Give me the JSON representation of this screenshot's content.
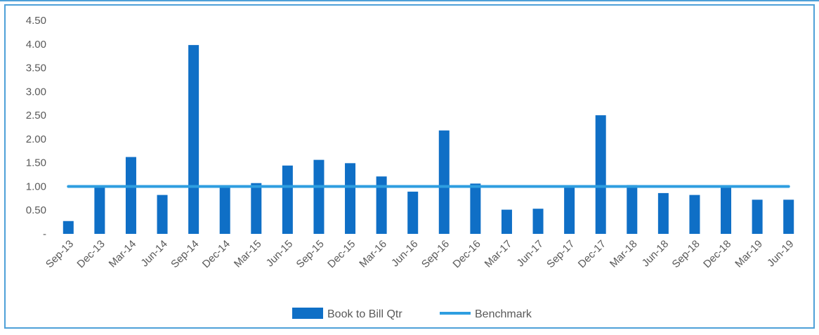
{
  "chart_data": {
    "type": "bar",
    "categories": [
      "Sep-13",
      "Dec-13",
      "Mar-14",
      "Jun-14",
      "Sep-14",
      "Dec-14",
      "Mar-15",
      "Jun-15",
      "Sep-15",
      "Dec-15",
      "Mar-16",
      "Jun-16",
      "Sep-16",
      "Dec-16",
      "Mar-17",
      "Jun-17",
      "Sep-17",
      "Dec-17",
      "Mar-18",
      "Jun-18",
      "Sep-18",
      "Dec-18",
      "Mar-19",
      "Jun-19"
    ],
    "series": [
      {
        "name": "Book to Bill Qtr",
        "type": "bar",
        "color": "#0f6fc6",
        "values": [
          0.27,
          0.97,
          1.62,
          0.82,
          3.98,
          0.97,
          1.07,
          1.44,
          1.56,
          1.49,
          1.21,
          0.89,
          2.18,
          1.06,
          0.51,
          0.53,
          0.97,
          2.5,
          1.03,
          0.86,
          0.82,
          0.97,
          0.72,
          0.72
        ]
      },
      {
        "name": "Benchmark",
        "type": "line",
        "color": "#2e9ee0",
        "values": [
          1,
          1,
          1,
          1,
          1,
          1,
          1,
          1,
          1,
          1,
          1,
          1,
          1,
          1,
          1,
          1,
          1,
          1,
          1,
          1,
          1,
          1,
          1,
          1
        ]
      }
    ],
    "ylim": [
      0,
      4.5
    ],
    "y_ticks": [
      "-",
      "0.50",
      "1.00",
      "1.50",
      "2.00",
      "2.50",
      "3.00",
      "3.50",
      "4.00",
      "4.50"
    ],
    "y_tick_values": [
      0,
      0.5,
      1,
      1.5,
      2,
      2.5,
      3,
      3.5,
      4,
      4.5
    ],
    "legend_position": "bottom",
    "grid": false
  }
}
